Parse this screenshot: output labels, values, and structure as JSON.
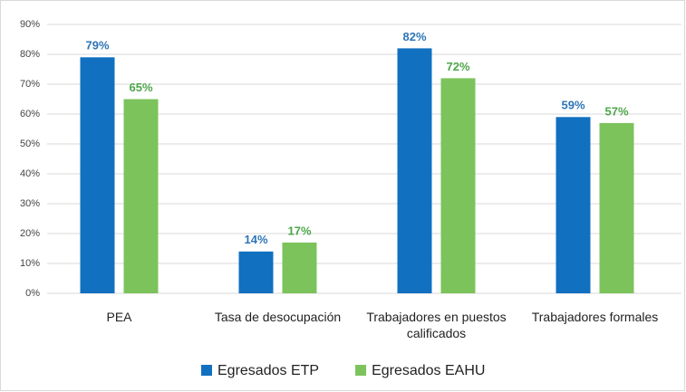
{
  "chart_data": {
    "type": "bar",
    "categories": [
      "PEA",
      "Tasa de desocupación",
      "Trabajadores en puestos calificados",
      "Trabajadores formales"
    ],
    "series": [
      {
        "name": "Egresados ETP",
        "color": "#1170c0",
        "label_color": "#2e75b6",
        "values": [
          79,
          14,
          82,
          59
        ],
        "value_labels": [
          "79%",
          "14%",
          "82%",
          "59%"
        ]
      },
      {
        "name": "Egresados EAHU",
        "color": "#7cc35c",
        "label_color": "#4ea64a",
        "values": [
          65,
          17,
          72,
          57
        ],
        "value_labels": [
          "65%",
          "17%",
          "72%",
          "57%"
        ]
      }
    ],
    "ylim": [
      0,
      90
    ],
    "yticks": [
      {
        "value": 0,
        "label": "0%"
      },
      {
        "value": 10,
        "label": "10%"
      },
      {
        "value": 20,
        "label": "20%"
      },
      {
        "value": 30,
        "label": "30%"
      },
      {
        "value": 40,
        "label": "40%"
      },
      {
        "value": 50,
        "label": "50%"
      },
      {
        "value": 60,
        "label": "60%"
      },
      {
        "value": 70,
        "label": "70%"
      },
      {
        "value": 80,
        "label": "80%"
      },
      {
        "value": 90,
        "label": "90%"
      }
    ],
    "grid": true,
    "legend": "bottom"
  }
}
